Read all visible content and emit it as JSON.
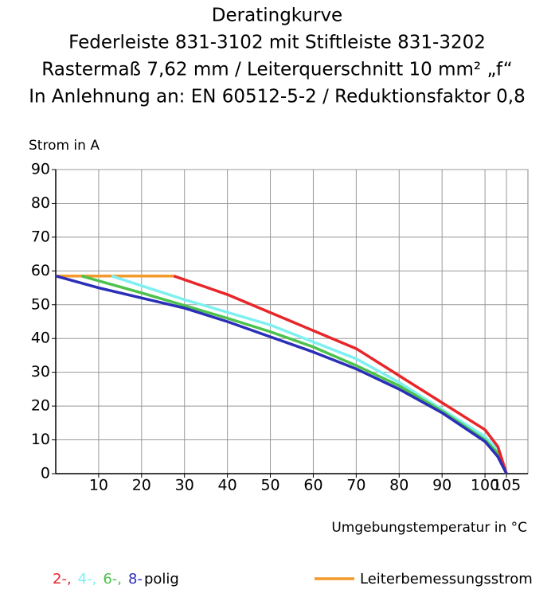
{
  "chart_data": {
    "type": "line",
    "title": [
      "Deratingkurve",
      "Federleiste 831-3102 mit Stiftleiste 831-3202",
      "Rastermaß 7,62 mm / Leiterquerschnitt 10 mm² „f“",
      "In Anlehnung an: EN 60512-5-2 / Reduktionsfaktor 0,8"
    ],
    "y_label": "Strom in A",
    "x_label": "Umgebungstemperatur in °C",
    "xlim": [
      0,
      110
    ],
    "ylim": [
      0,
      90
    ],
    "xticks": [
      10,
      20,
      30,
      40,
      50,
      60,
      70,
      80,
      90,
      100,
      105
    ],
    "yticks": [
      0,
      10,
      20,
      30,
      40,
      50,
      60,
      70,
      80,
      90
    ],
    "grid": true,
    "legend_suffix": "polig",
    "series": [
      {
        "name": "2-,",
        "color": "#e8262a",
        "x": [
          27.5,
          40,
          55,
          70,
          80,
          90,
          100,
          103,
          105
        ],
        "values": [
          58.5,
          53,
          45,
          37,
          29,
          21,
          13,
          8,
          0
        ]
      },
      {
        "name": "4-,",
        "color": "#7ff0f0",
        "x": [
          13,
          30,
          50,
          60,
          70,
          80,
          90,
          100,
          103,
          105
        ],
        "values": [
          58.5,
          51.5,
          44,
          39,
          34,
          27,
          19,
          11,
          7,
          0
        ]
      },
      {
        "name": "6-,",
        "color": "#4cc24c",
        "x": [
          6,
          20,
          40,
          50,
          60,
          70,
          80,
          90,
          100,
          103,
          105
        ],
        "values": [
          58.5,
          53.5,
          46,
          42,
          37.5,
          32,
          26,
          18.5,
          10,
          6,
          0
        ]
      },
      {
        "name": "8-",
        "color": "#2a2fb8",
        "x": [
          0,
          10,
          20,
          30,
          40,
          50,
          60,
          70,
          80,
          90,
          100,
          103,
          105
        ],
        "values": [
          58.5,
          55,
          52,
          49,
          45,
          40.5,
          36,
          31,
          25,
          18,
          9.5,
          5,
          0
        ]
      },
      {
        "name": "Leiterbemessungsstrom",
        "color": "#f39a2a",
        "x": [
          0,
          27.5
        ],
        "values": [
          58.5,
          58.5
        ]
      }
    ]
  }
}
